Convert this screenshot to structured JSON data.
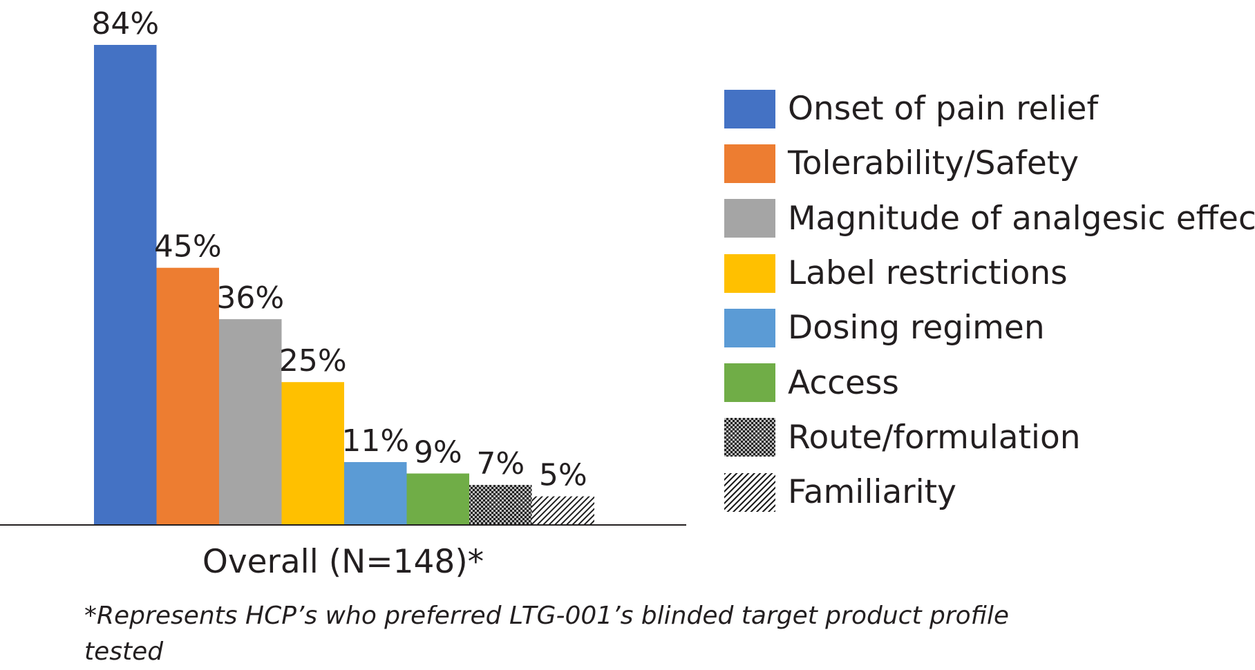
{
  "chart_data": {
    "type": "bar",
    "categories": [
      "Overall (N=148)*"
    ],
    "series": [
      {
        "name": "Onset of pain relief",
        "values": [
          84
        ],
        "label": "84%",
        "color": "#4472c4",
        "fill": "solid"
      },
      {
        "name": "Tolerability/Safety",
        "values": [
          45
        ],
        "label": "45%",
        "color": "#ed7d31",
        "fill": "solid"
      },
      {
        "name": "Magnitude of analgesic effect",
        "values": [
          36
        ],
        "label": "36%",
        "color": "#a5a5a5",
        "fill": "solid"
      },
      {
        "name": "Label restrictions",
        "values": [
          25
        ],
        "label": "25%",
        "color": "#ffc000",
        "fill": "solid"
      },
      {
        "name": "Dosing regimen",
        "values": [
          11
        ],
        "label": "11%",
        "color": "#5b9bd5",
        "fill": "solid"
      },
      {
        "name": "Access",
        "values": [
          9
        ],
        "label": "9%",
        "color": "#70ad47",
        "fill": "solid"
      },
      {
        "name": "Route/formulation",
        "values": [
          7
        ],
        "label": "7%",
        "color": "#1e1e1e",
        "fill": "checker"
      },
      {
        "name": "Familiarity",
        "values": [
          5
        ],
        "label": "5%",
        "color": "#1e1e1e",
        "fill": "diagonal"
      }
    ],
    "unit": "%",
    "ylim": [
      0,
      84
    ],
    "grid": false,
    "legend": "right",
    "footnote": "*Represents HCP’s who preferred LTG-001’s blinded target product profile tested"
  }
}
